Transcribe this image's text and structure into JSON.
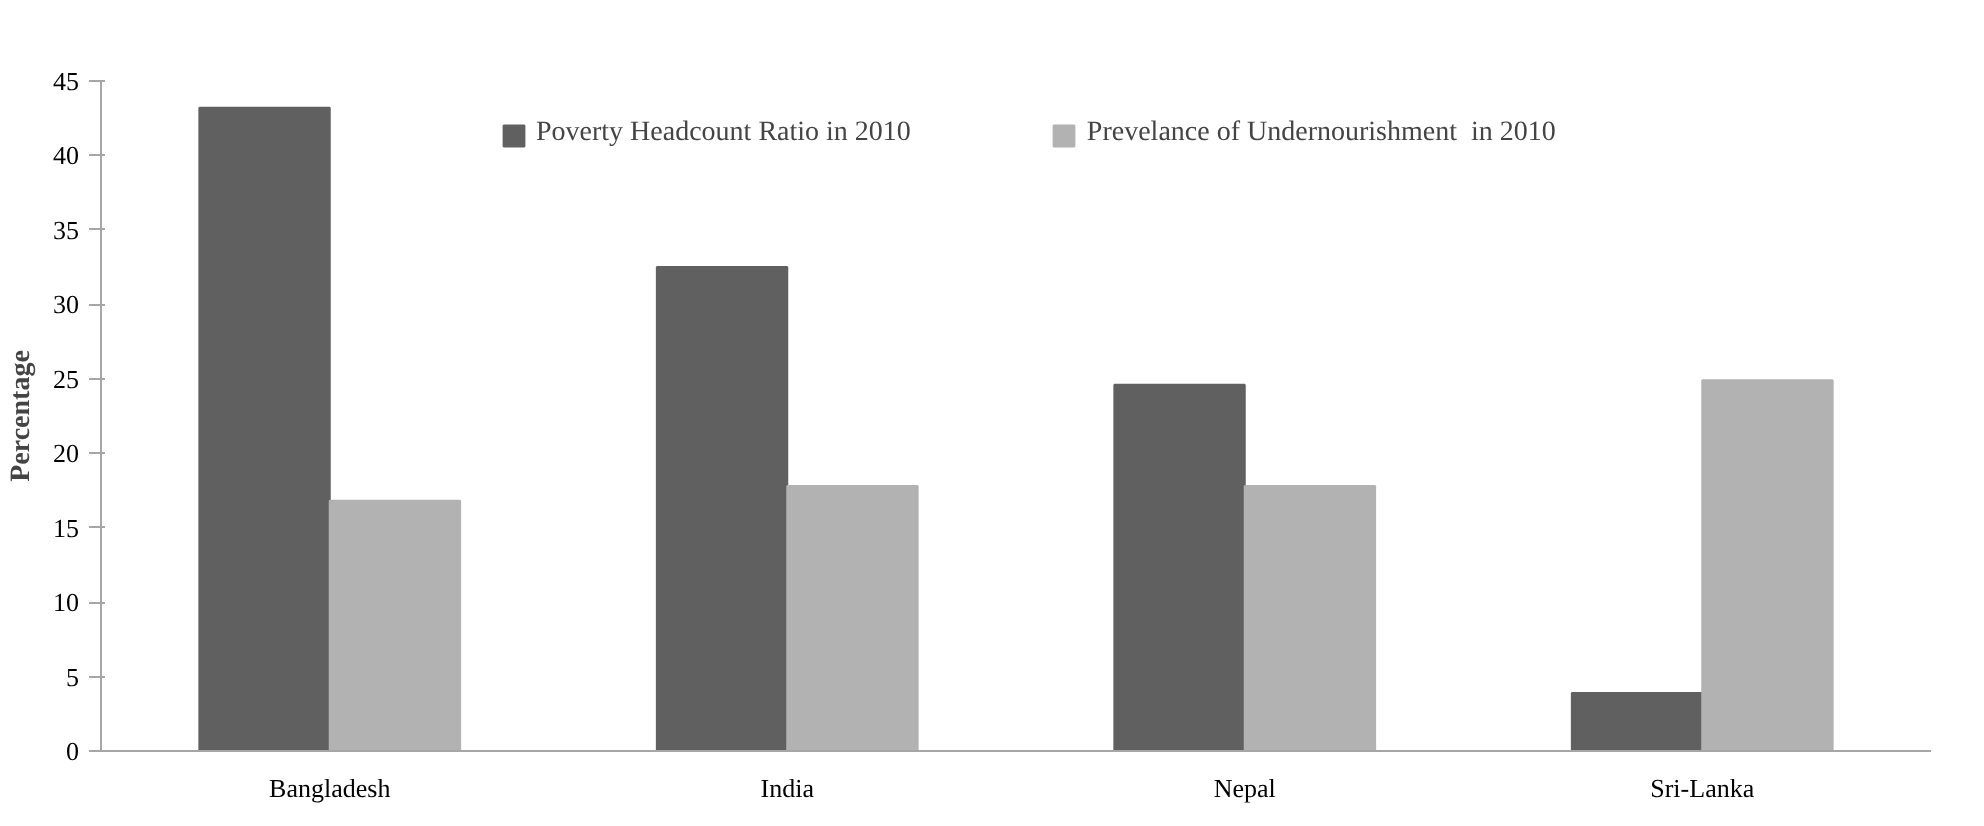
{
  "chart_data": {
    "type": "bar",
    "ylabel": "Percentage",
    "categories": [
      "Bangladesh",
      "India",
      "Nepal",
      "Sri-Lanka"
    ],
    "series": [
      {
        "name": "Poverty Headcount Ratio in 2010",
        "color": "#606060",
        "values": [
          43.2,
          32.5,
          24.6,
          3.9
        ]
      },
      {
        "name": "Prevelance of Undernourishment  in 2010",
        "color": "#b2b2b2",
        "values": [
          16.8,
          17.8,
          17.8,
          24.9
        ]
      }
    ],
    "ylim": [
      0,
      45
    ],
    "yticks": [
      0,
      5,
      10,
      15,
      20,
      25,
      30,
      35,
      40,
      45
    ],
    "grid": false,
    "legend": "top"
  }
}
